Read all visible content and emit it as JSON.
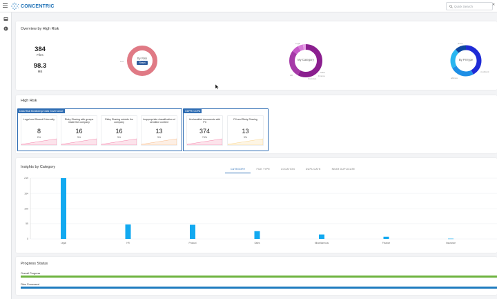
{
  "header": {
    "brand": "CONCENTRIC",
    "search_placeholder": "Quick Search",
    "close_symbol": "✕"
  },
  "overview": {
    "title": "Overview by High Risk",
    "files_count": "384",
    "files_label": "Files",
    "size_value": "98.3",
    "size_unit": "MB",
    "risk_donut": {
      "center_label": "By Risk",
      "reset_label": "Reset",
      "color": "#e07a85",
      "side_label": "Low"
    },
    "category_donut": {
      "center_label": "My Category",
      "labels": [
        "Legal",
        "HR",
        "Sales",
        "Finance",
        "Insurance"
      ],
      "colors": [
        "#8b1f8f",
        "#a63aa8",
        "#c659c8",
        "#d77ad8",
        "#e6a2e6"
      ]
    },
    "pii_donut": {
      "center_label": "By PII type",
      "labels": [
        "phone",
        "creditcard",
        "address",
        "email"
      ],
      "colors": [
        "#1f2bd6",
        "#1e8fe6",
        "#29b6f0",
        "#0d47a1"
      ]
    }
  },
  "high_risk": {
    "title": "High Risk",
    "groups": [
      {
        "header": "Data Risk Monitoring/ Data Governance",
        "tiles": [
          {
            "title": "Legal and Shared Externally",
            "count": "8",
            "pct": "2%",
            "color": "#f06292"
          },
          {
            "title": "Risky Sharing with groups inside the company",
            "count": "16",
            "pct": "3%",
            "color": "#f06292"
          },
          {
            "title": "Risky Sharing outside the company",
            "count": "16",
            "pct": "3%",
            "color": "#f06292"
          },
          {
            "title": "Inappropriate classification of sensitive content",
            "count": "13",
            "pct": "3%",
            "color": "#f6a96b"
          }
        ]
      },
      {
        "header": "GDPR/ CCPA",
        "tiles": [
          {
            "title": "Unclassified documents with PII",
            "count": "374",
            "pct": "74%",
            "color": "#f06292"
          },
          {
            "title": "PII and Risky Sharing",
            "count": "13",
            "pct": "3%",
            "color": "#f6c86b"
          }
        ]
      }
    ]
  },
  "insights": {
    "title": "Insights by Category",
    "tabs": [
      "CATEGORY",
      "FILE TYPE",
      "LOCATION",
      "DUPLICATE",
      "NEAR DUPLICATE"
    ],
    "active_tab": 0
  },
  "chart_data": {
    "type": "bar",
    "categories": [
      "Legal",
      "HR",
      "Product",
      "Sales",
      "Miscellaneous",
      "Finance",
      "Insurance"
    ],
    "values": [
      219,
      52,
      51,
      28,
      16,
      8,
      1
    ],
    "ytick_labels": [
      "219",
      "164",
      "109",
      "55",
      "0"
    ],
    "ytick_values": [
      219,
      164,
      109,
      55,
      0
    ],
    "ylim": [
      0,
      219
    ],
    "bar_color": "#12a9f0"
  },
  "progress": {
    "title": "Progress Status",
    "bars": [
      {
        "label": "Overall Progress",
        "value": 1.0,
        "color": "#6db33f"
      },
      {
        "label": "Files Processed",
        "value": 1.0,
        "color": "#1e7bbf"
      }
    ]
  }
}
